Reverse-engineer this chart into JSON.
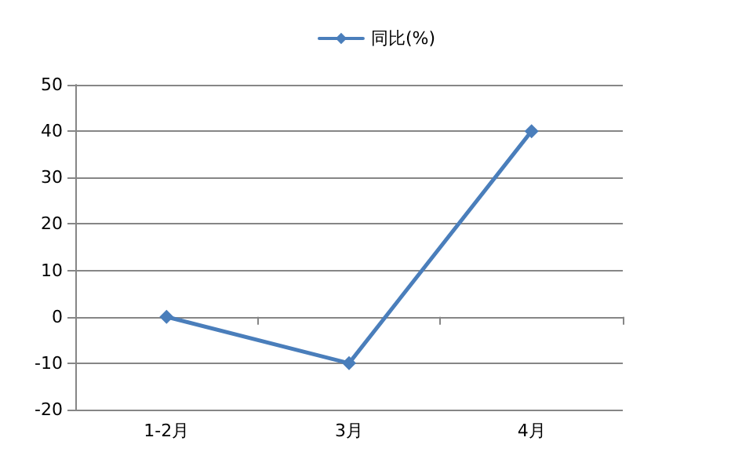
{
  "chart_data": {
    "type": "line",
    "categories": [
      "1-2月",
      "3月",
      "4月"
    ],
    "series": [
      {
        "name": "同比(%)",
        "color": "#4a7ebb",
        "values": [
          0,
          -10,
          40
        ]
      }
    ],
    "ylim": [
      -20,
      50
    ],
    "yticks": [
      -20,
      -10,
      0,
      10,
      20,
      30,
      40,
      50
    ],
    "grid": "y",
    "legend": "top",
    "marker": "diamond",
    "line_style": "solid"
  }
}
